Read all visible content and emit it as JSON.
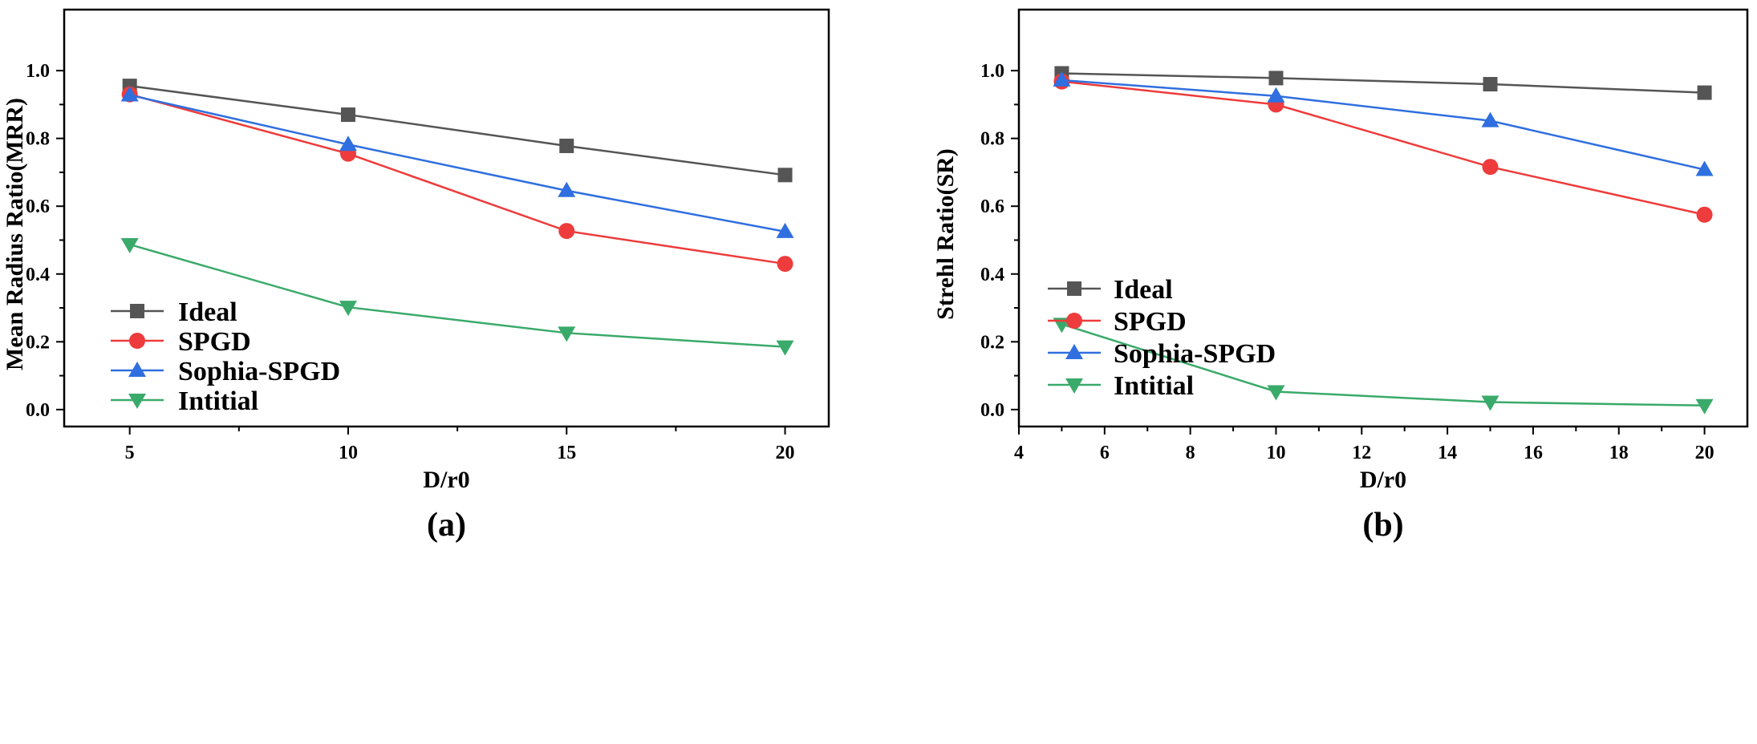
{
  "chart_data": [
    {
      "panel": "(a)",
      "type": "line",
      "xlabel": "D/r0",
      "ylabel": "Mean Radius Ratio(MRR)",
      "xlim": [
        3.5,
        21.0
      ],
      "ylim": [
        -0.05,
        1.18
      ],
      "xticks": [
        5,
        10,
        15,
        20
      ],
      "yticks": [
        0.0,
        0.2,
        0.4,
        0.6,
        0.8,
        1.0
      ],
      "legend_position": "bottom-left",
      "x": [
        5,
        10,
        15,
        20
      ],
      "series": [
        {
          "name": "Ideal",
          "color": "#555555",
          "marker": "square",
          "values": [
            0.955,
            0.87,
            0.778,
            0.692
          ]
        },
        {
          "name": "SPGD",
          "color": "#ee3b3b",
          "marker": "circle",
          "values": [
            0.93,
            0.755,
            0.527,
            0.43
          ]
        },
        {
          "name": "Sophia-SPGD",
          "color": "#2f6fdf",
          "marker": "triangle-up",
          "values": [
            0.928,
            0.782,
            0.646,
            0.525
          ]
        },
        {
          "name": "Intitial",
          "color": "#3aaa6a",
          "marker": "triangle-down",
          "values": [
            0.487,
            0.302,
            0.226,
            0.185
          ]
        }
      ]
    },
    {
      "panel": "(b)",
      "type": "line",
      "xlabel": "D/r0",
      "ylabel": "Strehl Ratio(SR)",
      "xlim": [
        4.0,
        21.0
      ],
      "ylim": [
        -0.05,
        1.18
      ],
      "xticks": [
        4,
        6,
        8,
        10,
        12,
        14,
        16,
        18,
        20
      ],
      "yticks": [
        0.0,
        0.2,
        0.4,
        0.6,
        0.8,
        1.0
      ],
      "legend_position": "center-left",
      "x": [
        5,
        10,
        15,
        20
      ],
      "series": [
        {
          "name": "Ideal",
          "color": "#555555",
          "marker": "square",
          "values": [
            0.992,
            0.978,
            0.96,
            0.935
          ]
        },
        {
          "name": "SPGD",
          "color": "#ee3b3b",
          "marker": "circle",
          "values": [
            0.968,
            0.9,
            0.716,
            0.575
          ]
        },
        {
          "name": "Sophia-SPGD",
          "color": "#2f6fdf",
          "marker": "triangle-up",
          "values": [
            0.972,
            0.925,
            0.852,
            0.708
          ]
        },
        {
          "name": "Intitial",
          "color": "#3aaa6a",
          "marker": "triangle-down",
          "values": [
            0.252,
            0.053,
            0.022,
            0.012
          ]
        }
      ]
    }
  ]
}
